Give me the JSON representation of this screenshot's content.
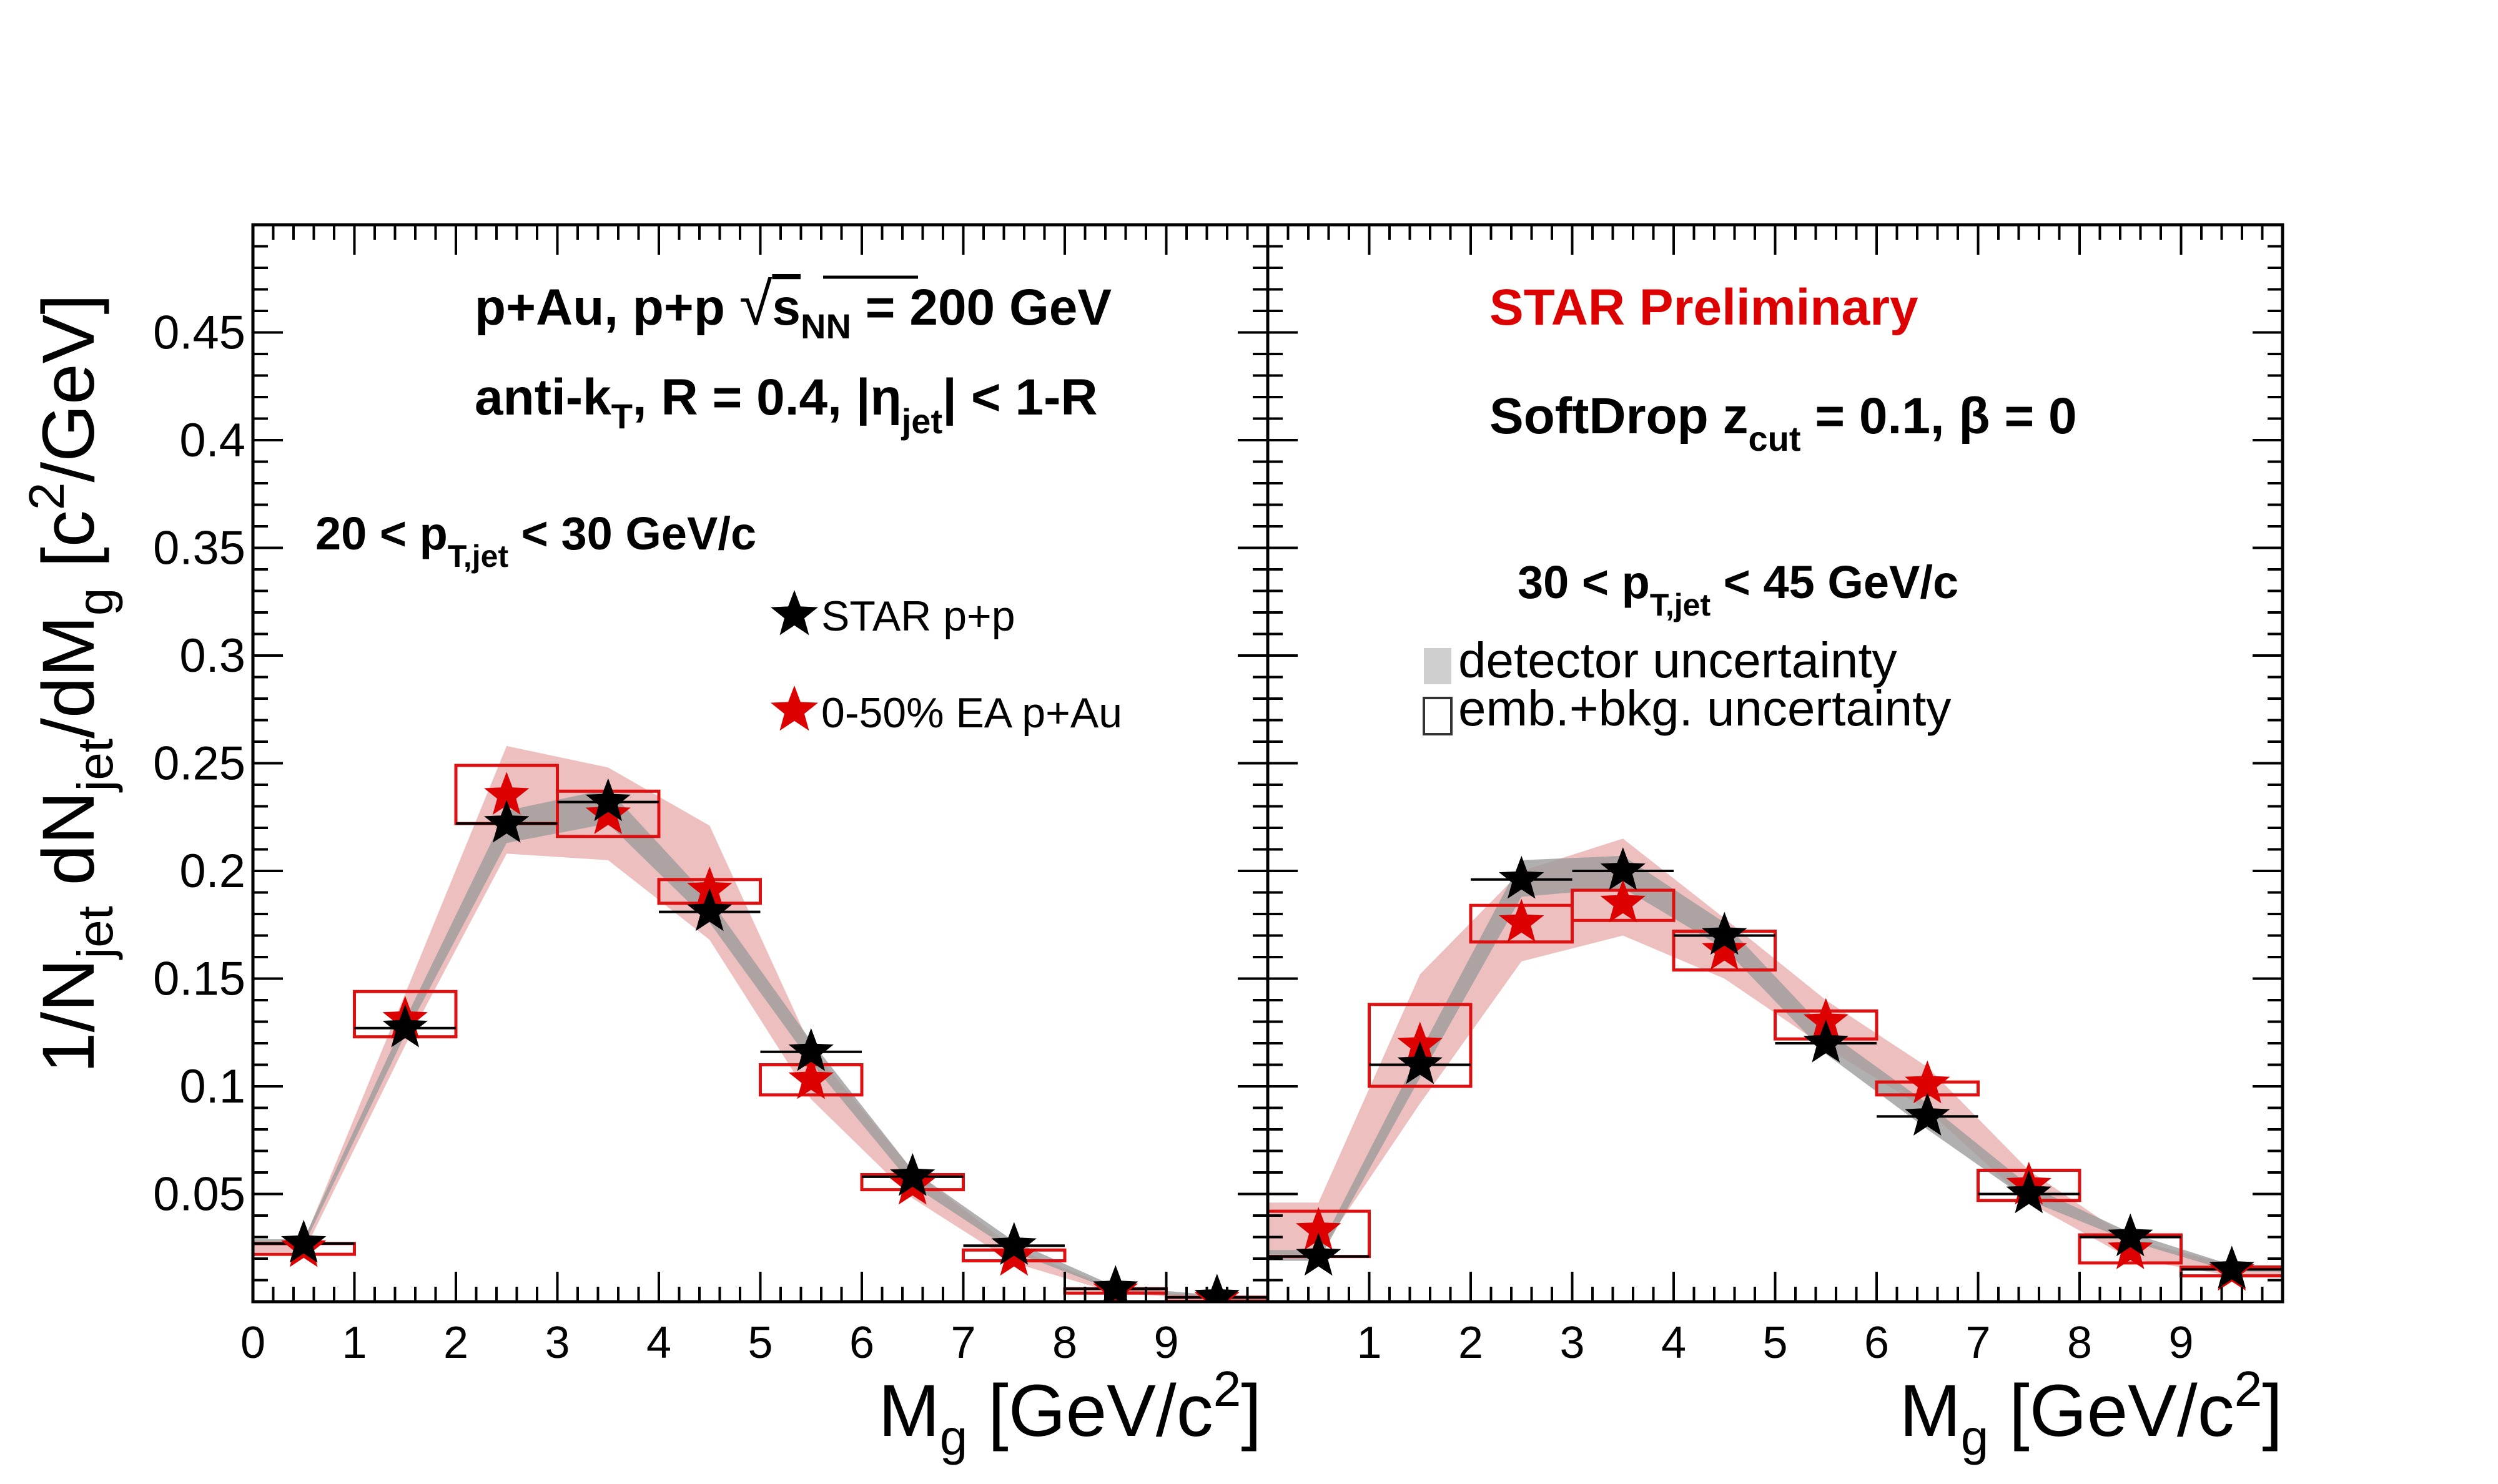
{
  "figure": {
    "ylabel": "1/N_jet dN_jet/dM_g [c²/GeV]",
    "xlabel": "M_g [GeV/c²]",
    "label_colors": {
      "black": "#000000",
      "red": "#dd0000"
    }
  },
  "colors": {
    "pp": "#000000",
    "pau": "#dd0000",
    "pau_band": "#e8a9aa",
    "pp_band": "#9c9c9c",
    "emb_box": "#dd1111"
  },
  "legend": {
    "pp": "STAR p+p",
    "pau": "0-50% EA p+Au",
    "detector": "detector uncertainty",
    "emb": "emb.+bkg. uncertainty"
  },
  "annotations": {
    "collision": "p+Au, p+p √s_NN = 200 GeV",
    "jetdef": "anti-k_T, R = 0.4, |η_jet| < 1-R",
    "preliminary": "STAR Preliminary",
    "softdrop": "SoftDrop z_cut = 0.1, β = 0",
    "left_range": "20 < p_T,jet < 30 GeV/c",
    "right_range": "30 < p_T,jet < 45 GeV/c"
  },
  "chart_data": [
    {
      "type": "scatter",
      "panel": "left",
      "subtitle": "20 < p_T,jet < 30 GeV/c",
      "xlabel": "M_g [GeV/c²]",
      "ylabel": "1/N_jet dN_jet/dM_g [c²/GeV]",
      "xlim": [
        0,
        10
      ],
      "ylim": [
        0,
        0.5
      ],
      "x_ticks": [
        0,
        1,
        2,
        3,
        4,
        5,
        6,
        7,
        8,
        9
      ],
      "y_ticks": [
        0.05,
        0.1,
        0.15,
        0.2,
        0.25,
        0.3,
        0.35,
        0.4,
        0.45
      ],
      "x": [
        0.5,
        1.5,
        2.5,
        3.5,
        4.5,
        5.5,
        6.5,
        7.5,
        8.5,
        9.5
      ],
      "series": [
        {
          "name": "STAR p+p",
          "values": [
            0.027,
            0.127,
            0.222,
            0.232,
            0.181,
            0.116,
            0.058,
            0.026,
            0.006,
            0.002
          ],
          "band_low": [
            0.026,
            0.124,
            0.213,
            0.222,
            0.176,
            0.111,
            0.054,
            0.023,
            0.005,
            0.001
          ],
          "band_high": [
            0.029,
            0.131,
            0.228,
            0.238,
            0.187,
            0.121,
            0.061,
            0.028,
            0.007,
            0.003
          ]
        },
        {
          "name": "0-50% EA p+Au",
          "values": [
            0.025,
            0.131,
            0.235,
            0.226,
            0.191,
            0.103,
            0.054,
            0.021,
            0.005,
            0.001
          ],
          "band_low": [
            0.023,
            0.119,
            0.208,
            0.205,
            0.168,
            0.094,
            0.048,
            0.018,
            0.004,
            0.001
          ],
          "band_high": [
            0.028,
            0.143,
            0.258,
            0.248,
            0.221,
            0.118,
            0.061,
            0.025,
            0.006,
            0.002
          ],
          "box_low": [
            0.022,
            0.123,
            0.222,
            0.216,
            0.185,
            0.096,
            0.052,
            0.019,
            0.004,
            0.001
          ],
          "box_high": [
            0.027,
            0.144,
            0.249,
            0.237,
            0.196,
            0.11,
            0.059,
            0.024,
            0.006,
            0.002
          ]
        }
      ]
    },
    {
      "type": "scatter",
      "panel": "right",
      "subtitle": "30 < p_T,jet < 45 GeV/c",
      "xlabel": "M_g [GeV/c²]",
      "xlim": [
        0,
        10
      ],
      "ylim": [
        0,
        0.5
      ],
      "x_ticks": [
        1,
        2,
        3,
        4,
        5,
        6,
        7,
        8,
        9
      ],
      "x": [
        0.5,
        1.5,
        2.5,
        3.5,
        4.5,
        5.5,
        6.5,
        7.5,
        8.5,
        9.5
      ],
      "series": [
        {
          "name": "STAR p+p",
          "values": [
            0.021,
            0.11,
            0.196,
            0.2,
            0.17,
            0.12,
            0.086,
            0.05,
            0.03,
            0.015
          ],
          "band_low": [
            0.019,
            0.104,
            0.188,
            0.192,
            0.164,
            0.115,
            0.08,
            0.047,
            0.028,
            0.014
          ],
          "band_high": [
            0.024,
            0.116,
            0.205,
            0.207,
            0.176,
            0.126,
            0.092,
            0.054,
            0.032,
            0.017
          ]
        },
        {
          "name": "0-50% EA p+Au",
          "values": [
            0.033,
            0.119,
            0.176,
            0.185,
            0.163,
            0.13,
            0.101,
            0.054,
            0.024,
            0.014
          ],
          "band_low": [
            0.022,
            0.092,
            0.158,
            0.17,
            0.15,
            0.118,
            0.089,
            0.046,
            0.02,
            0.012
          ],
          "band_high": [
            0.046,
            0.152,
            0.2,
            0.215,
            0.178,
            0.14,
            0.109,
            0.061,
            0.029,
            0.017
          ],
          "box_low": [
            0.021,
            0.1,
            0.167,
            0.177,
            0.154,
            0.122,
            0.096,
            0.047,
            0.018,
            0.012
          ],
          "box_high": [
            0.042,
            0.138,
            0.184,
            0.191,
            0.172,
            0.135,
            0.102,
            0.061,
            0.031,
            0.016
          ]
        }
      ]
    }
  ]
}
